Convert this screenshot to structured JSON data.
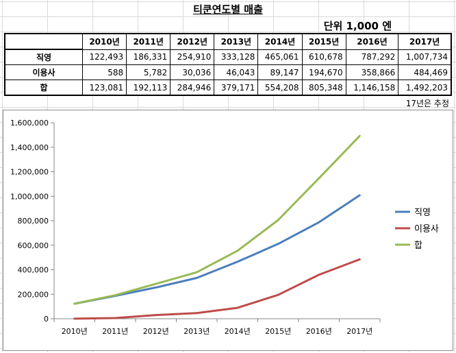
{
  "sheet": {
    "title": "티쿤연도별 매출",
    "unit": "단위 1,000 엔",
    "note": "17년은 추정",
    "years": [
      "2010년",
      "2011년",
      "2012년",
      "2013년",
      "2014년",
      "2015년",
      "2016년",
      "2017년"
    ],
    "rows": [
      {
        "label": "직영",
        "values": [
          "122,493",
          "186,331",
          "254,910",
          "333,128",
          "465,061",
          "610,678",
          "787,292",
          "1,007,734"
        ]
      },
      {
        "label": "이용사",
        "values": [
          "588",
          "5,782",
          "30,036",
          "46,043",
          "89,147",
          "194,670",
          "358,866",
          "484,469"
        ]
      },
      {
        "label": "합",
        "values": [
          "123,081",
          "192,113",
          "284,946",
          "379,171",
          "554,208",
          "805,348",
          "1,146,158",
          "1,492,203"
        ]
      }
    ]
  },
  "chart_data": {
    "type": "line",
    "categories": [
      "2010년",
      "2011년",
      "2012년",
      "2013년",
      "2014년",
      "2015년",
      "2016년",
      "2017년"
    ],
    "ylim": [
      0,
      1600000
    ],
    "yticks": [
      0,
      200000,
      400000,
      600000,
      800000,
      1000000,
      1200000,
      1400000,
      1600000
    ],
    "ytick_labels": [
      "0",
      "200,000",
      "400,000",
      "600,000",
      "800,000",
      "1,000,000",
      "1,200,000",
      "1,400,000",
      "1,600,000"
    ],
    "grid": false,
    "legend_position": "right",
    "series": [
      {
        "name": "직영",
        "color": "#4a7ebb",
        "values": [
          122493,
          186331,
          254910,
          333128,
          465061,
          610678,
          787292,
          1007734
        ]
      },
      {
        "name": "이용사",
        "color": "#be4b48",
        "values": [
          588,
          5782,
          30036,
          46043,
          89147,
          194670,
          358866,
          484469
        ]
      },
      {
        "name": "합",
        "color": "#98b954",
        "values": [
          123081,
          192113,
          284946,
          379171,
          554208,
          805348,
          1146158,
          1492203
        ]
      }
    ]
  }
}
